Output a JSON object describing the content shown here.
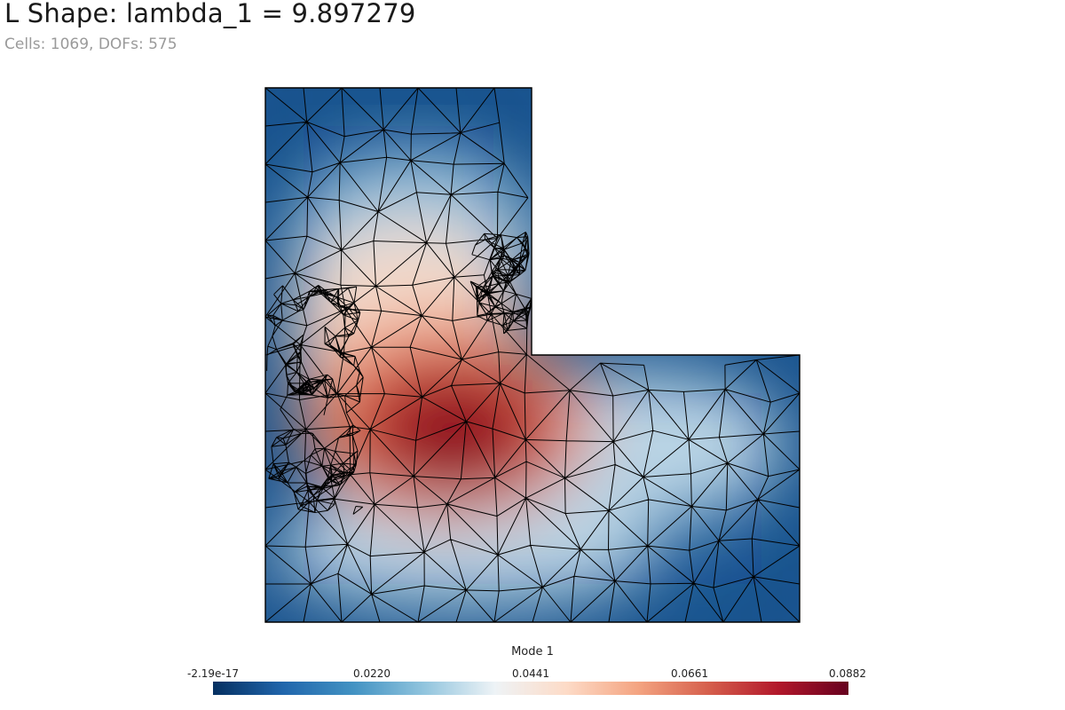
{
  "header": {
    "title": "L Shape: lambda_1 = 9.897279",
    "subtitle": "Cells: 1069, DOFs: 575"
  },
  "colorbar": {
    "title": "Mode 1",
    "ticks": [
      "-2.19e-17",
      "0.0220",
      "0.0441",
      "0.0661",
      "0.0882"
    ],
    "min": -2.19e-17,
    "max": 0.0882,
    "colormap": [
      "#053061",
      "#2166ac",
      "#4393c3",
      "#92c5de",
      "#eef3f6",
      "#fddbc7",
      "#f4a582",
      "#d6604d",
      "#b2182b",
      "#67001f"
    ]
  },
  "mesh": {
    "cells": 1069,
    "dofs": 575,
    "mesh_color": "#000000",
    "shape": "L"
  }
}
